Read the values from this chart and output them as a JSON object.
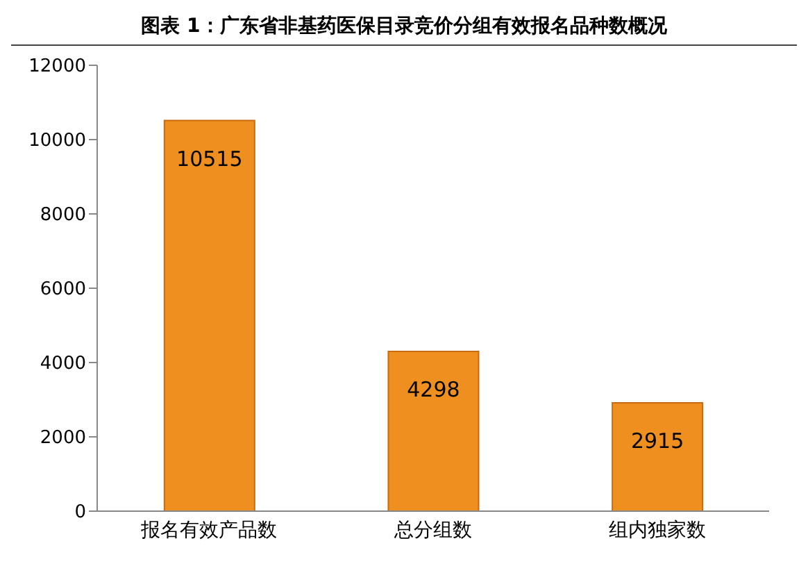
{
  "chart_data": {
    "type": "bar",
    "title": "图表 1：广东省非基药医保目录竞价分组有效报名品种数概况",
    "categories": [
      "报名有效产品数",
      "总分组数",
      "组内独家数"
    ],
    "values": [
      10515,
      4298,
      2915
    ],
    "color": "#ef8f1f",
    "ylim": [
      0,
      12000
    ],
    "yticks": [
      0,
      2000,
      4000,
      6000,
      8000,
      10000,
      12000
    ],
    "data_labels": true
  }
}
